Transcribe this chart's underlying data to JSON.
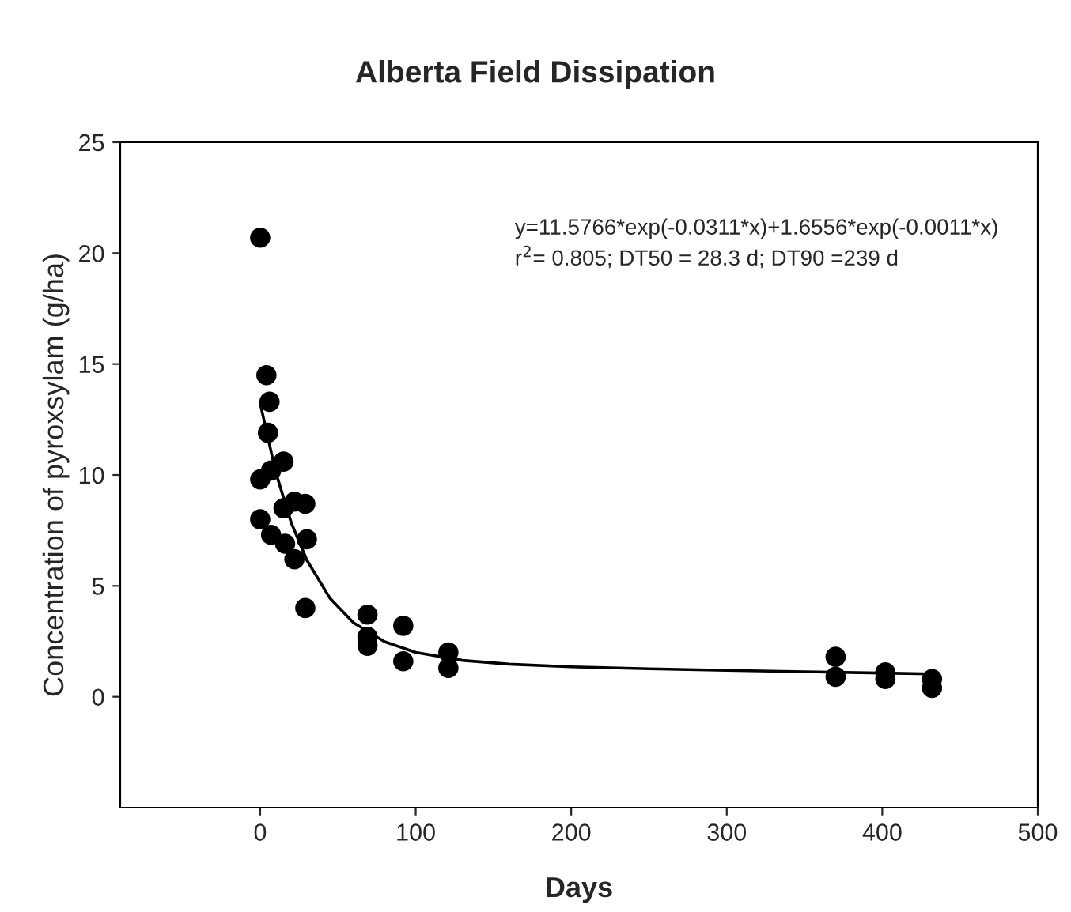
{
  "chart_data": {
    "type": "scatter",
    "title": "Alberta Field Dissipation",
    "xlabel": "Days",
    "ylabel": "Concentration of pyroxsylam (g/ha)",
    "xlim": [
      -90,
      500
    ],
    "xticks": [
      0,
      100,
      200,
      300,
      400,
      500
    ],
    "ylim": [
      -5,
      25
    ],
    "yticks": [
      0,
      5,
      10,
      15,
      20,
      25
    ],
    "grid": false,
    "legend": false,
    "annotations": [
      "y=11.5766*exp(-0.0311*x)+1.6556*exp(-0.0011*x)",
      "r$^{2}$= 0.805; DT50 = 28.3 d; DT90 =239 d"
    ],
    "series": [
      {
        "color": "#000000",
        "marker": "circle",
        "x": [
          0,
          4,
          6,
          5,
          15,
          7,
          0,
          15,
          22,
          29,
          0,
          7,
          16,
          30,
          22,
          29,
          69,
          69,
          69,
          92,
          92,
          121,
          121,
          370,
          370,
          402,
          402,
          432,
          432
        ],
        "values": [
          20.7,
          14.5,
          13.3,
          11.9,
          10.6,
          10.2,
          9.8,
          8.5,
          8.8,
          8.7,
          8.0,
          7.3,
          6.9,
          7.1,
          6.2,
          4.0,
          3.7,
          2.7,
          2.3,
          3.2,
          1.6,
          2.0,
          1.3,
          1.8,
          0.9,
          1.1,
          0.8,
          0.8,
          0.4
        ]
      },
      {
        "type": "line",
        "color": "#000000",
        "marker": "none",
        "line_style": "solid",
        "x": [
          0,
          10,
          20,
          30,
          45,
          60,
          80,
          100,
          130,
          160,
          200,
          250,
          300,
          350,
          400,
          432
        ],
        "values": [
          13.23,
          10.12,
          7.84,
          6.16,
          4.43,
          3.34,
          2.48,
          2.0,
          1.64,
          1.47,
          1.35,
          1.26,
          1.19,
          1.13,
          1.07,
          1.03
        ]
      }
    ]
  }
}
